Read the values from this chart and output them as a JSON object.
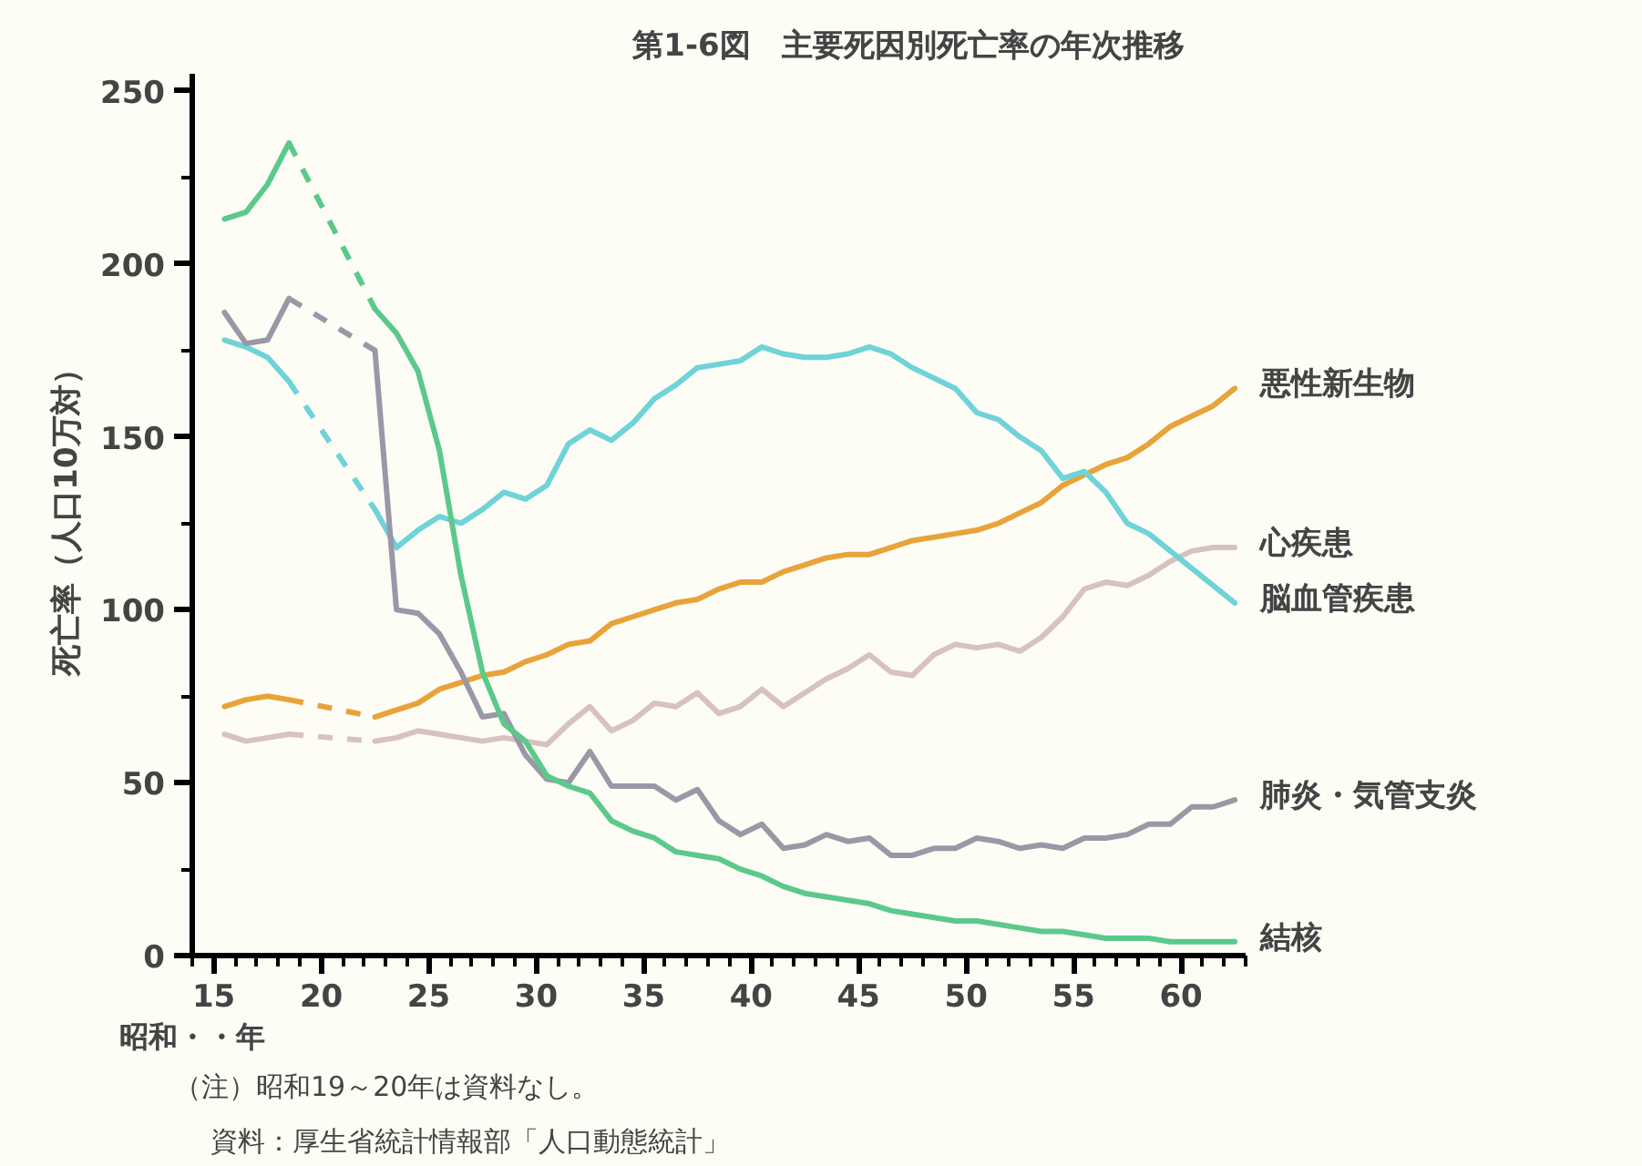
{
  "chart_data": {
    "type": "line",
    "title": "第1-6図　主要死因別死亡率の年次推移",
    "xlabel": "昭和・・年",
    "ylabel": "死亡率（人口10万対）",
    "annotations": [
      "（注）昭和19～20年は資料なし。",
      "資料：厚生省統計情報部「人口動態統計」"
    ],
    "x": [
      15.5,
      16.5,
      17.5,
      18.5,
      22.5,
      23.5,
      24.5,
      25.5,
      26.5,
      27.5,
      28.5,
      29.5,
      30.5,
      31.5,
      32.5,
      33.5,
      34.5,
      35.5,
      36.5,
      37.5,
      38.5,
      39.5,
      40.5,
      41.5,
      42.5,
      43.5,
      44.5,
      45.5,
      46.5,
      47.5,
      48.5,
      49.5,
      50.5,
      51.5,
      52.5,
      53.5,
      54.5,
      55.5,
      56.5,
      57.5,
      58.5,
      59.5,
      60.5,
      61.5,
      62.5
    ],
    "series": [
      {
        "name": "悪性新生物",
        "color": "#e8a33a",
        "values": [
          72,
          74,
          75,
          74,
          69,
          71,
          73,
          77,
          79,
          81,
          82,
          85,
          87,
          90,
          91,
          96,
          98,
          100,
          102,
          103,
          106,
          108,
          108,
          111,
          113,
          115,
          116,
          116,
          118,
          120,
          121,
          122,
          123,
          125,
          128,
          131,
          136,
          139,
          142,
          144,
          148,
          153,
          156,
          159,
          164
        ]
      },
      {
        "name": "心疾患",
        "color": "#d8c2bd",
        "values": [
          64,
          62,
          63,
          64,
          62,
          63,
          65,
          64,
          63,
          62,
          63,
          62,
          61,
          67,
          72,
          65,
          68,
          73,
          72,
          76,
          70,
          72,
          77,
          72,
          76,
          80,
          83,
          87,
          82,
          81,
          87,
          90,
          89,
          90,
          88,
          92,
          98,
          106,
          108,
          107,
          110,
          114,
          117,
          118,
          118
        ]
      },
      {
        "name": "脳血管疾患",
        "color": "#6fd3d8",
        "values": [
          178,
          176,
          173,
          166,
          129,
          118,
          123,
          127,
          125,
          129,
          134,
          132,
          136,
          148,
          152,
          149,
          154,
          161,
          165,
          170,
          171,
          172,
          176,
          174,
          173,
          173,
          174,
          176,
          174,
          170,
          167,
          164,
          157,
          155,
          150,
          146,
          138,
          140,
          134,
          125,
          122,
          117,
          112,
          107,
          102
        ]
      },
      {
        "name": "肺炎・気管支炎",
        "color": "#9a98a6",
        "values": [
          186,
          177,
          178,
          190,
          175,
          100,
          99,
          93,
          82,
          69,
          70,
          58,
          51,
          50,
          59,
          49,
          49,
          49,
          45,
          48,
          39,
          35,
          38,
          31,
          32,
          35,
          33,
          34,
          29,
          29,
          31,
          31,
          34,
          33,
          31,
          32,
          31,
          34,
          34,
          35,
          38,
          38,
          43,
          43,
          45
        ]
      },
      {
        "name": "結核",
        "color": "#5cc98a",
        "values": [
          213,
          215,
          223,
          235,
          187,
          180,
          169,
          146,
          110,
          82,
          67,
          62,
          52,
          49,
          47,
          39,
          36,
          34,
          30,
          29,
          28,
          25,
          23,
          20,
          18,
          17,
          16,
          15,
          13,
          12,
          11,
          10,
          10,
          9,
          8,
          7,
          7,
          6,
          5,
          5,
          5,
          4,
          4,
          4,
          4
        ]
      }
    ],
    "xlim": [
      14,
      63
    ],
    "ylim": [
      0,
      255
    ],
    "xticks": [
      15,
      20,
      25,
      30,
      35,
      40,
      45,
      50,
      55,
      60
    ],
    "yticks": [
      0,
      50,
      100,
      150,
      200,
      250
    ]
  }
}
